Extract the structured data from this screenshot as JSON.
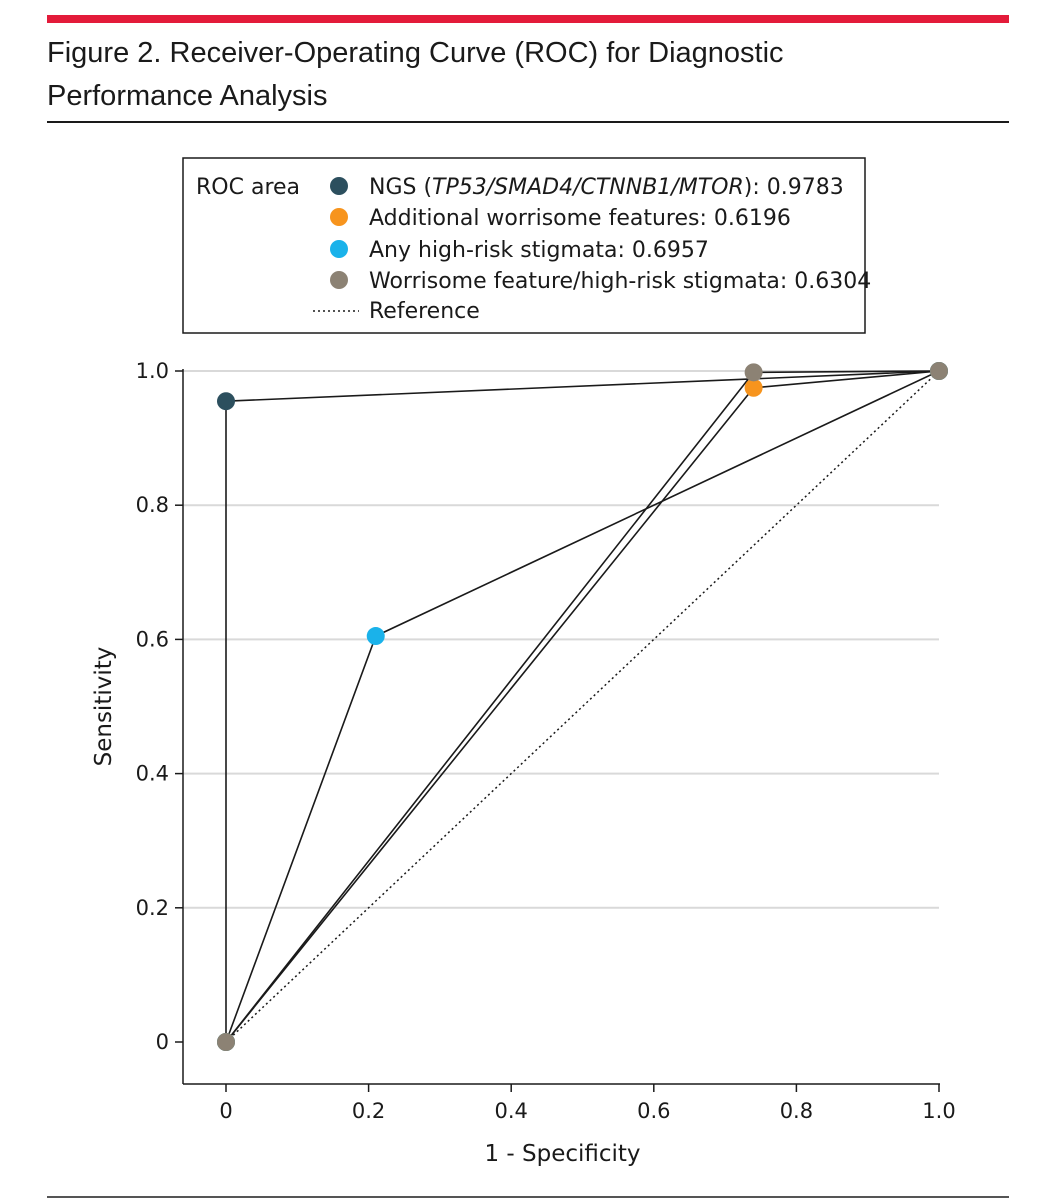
{
  "figure": {
    "title_line1": "Figure 2. Receiver-Operating Curve (ROC) for Diagnostic",
    "title_line2": "Performance Analysis"
  },
  "chart_data": {
    "type": "line",
    "xlabel": "1 - Specificity",
    "ylabel": "Sensitivity",
    "xlim": [
      0,
      1
    ],
    "ylim": [
      0,
      1
    ],
    "xticks": [
      0,
      0.2,
      0.4,
      0.6,
      0.8,
      1.0
    ],
    "yticks": [
      0,
      0.2,
      0.4,
      0.6,
      0.8,
      1.0
    ],
    "xtick_labels": [
      "0",
      "0.2",
      "0.4",
      "0.6",
      "0.8",
      "1.0"
    ],
    "ytick_labels": [
      "0",
      "0.2",
      "0.4",
      "0.6",
      "0.8",
      "1.0"
    ],
    "grid": "horizontal",
    "legend": {
      "title": "ROC area",
      "position": "top"
    },
    "series": [
      {
        "name_prefix": "NGS (",
        "name_italic": "TP53/SMAD4/CTNNB1/MTOR",
        "name_suffix": "): 0.9783",
        "color": "#2c4f5e",
        "x": [
          0,
          0,
          1
        ],
        "y": [
          0,
          0.955,
          1.0
        ]
      },
      {
        "name": "Additional worrisome features: 0.6196",
        "color": "#f7941d",
        "x": [
          0,
          0.74,
          1
        ],
        "y": [
          0,
          0.975,
          1.0
        ]
      },
      {
        "name": "Any high-risk stigmata: 0.6957",
        "color": "#1ab2ea",
        "x": [
          0,
          0.21,
          1
        ],
        "y": [
          0,
          0.605,
          1.0
        ]
      },
      {
        "name": "Worrisome feature/high-risk stigmata: 0.6304",
        "color": "#8c8274",
        "x": [
          0,
          0.74,
          1
        ],
        "y": [
          0,
          0.998,
          1.0
        ]
      }
    ],
    "reference": {
      "name": "Reference",
      "x": [
        0,
        1
      ],
      "y": [
        0,
        1
      ]
    }
  }
}
